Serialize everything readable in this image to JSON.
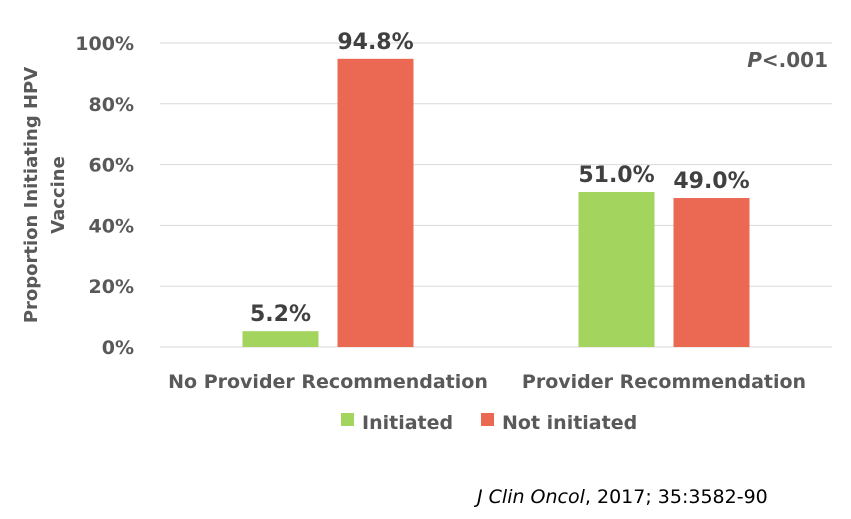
{
  "chart_data": {
    "type": "bar",
    "categories": [
      "No Provider Recommendation",
      "Provider Recommendation"
    ],
    "series": [
      {
        "name": "Initiated",
        "values": [
          5.2,
          51.0
        ],
        "labels": [
          "5.2%",
          "51.0%"
        ],
        "color": "#a2d45e"
      },
      {
        "name": "Not initiated",
        "values": [
          94.8,
          49.0
        ],
        "labels": [
          "94.8%",
          "49.0%"
        ],
        "color": "#eb6852"
      }
    ],
    "ylabel_lines": [
      "Proportion Initiating HPV",
      "Vaccine"
    ],
    "ylim": [
      0,
      100
    ],
    "yticks": [
      "0%",
      "20%",
      "40%",
      "60%",
      "80%",
      "100%"
    ],
    "grid": true,
    "legend": "bottom",
    "annotation": {
      "p_letter": "P",
      "p_value": "<.001"
    },
    "source": {
      "journal": "J Clin Oncol",
      "rest": ", 2017; 35:3582-90"
    }
  }
}
